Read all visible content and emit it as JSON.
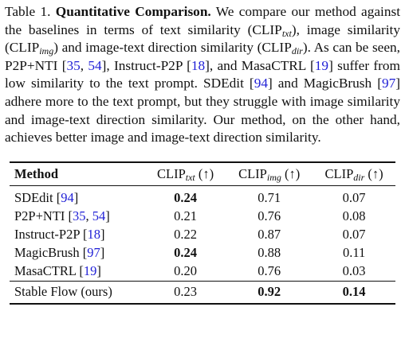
{
  "caption": [
    "Table 1. ",
    {
      "bold": "Quantitative Comparison."
    },
    " We compare our method against the baselines in terms of text similarity (CLIP",
    {
      "sub": "txt"
    },
    "), image similarity (CLIP",
    {
      "sub": "img"
    },
    ") and image-text direction similarity (CLIP",
    {
      "sub": "dir"
    },
    "). As can be seen, P2P+NTI [",
    {
      "cite": "35"
    },
    ", ",
    {
      "cite": "54"
    },
    "], Instruct-P2P [",
    {
      "cite": "18"
    },
    "], and MasaCTRL [",
    {
      "cite": "19"
    },
    "] suffer from low similarity to the text prompt. SDEdit [",
    {
      "cite": "94"
    },
    "] and MagicBrush [",
    {
      "cite": "97"
    },
    "] adhere more to the text prompt, but they struggle with image similarity and image-text direction similarity. Our method, on the other hand, achieves better image and image-text direction similarity."
  ],
  "table": {
    "header": [
      [
        {
          "bold": "Method"
        }
      ],
      [
        "CLIP",
        {
          "sub": "txt"
        },
        " (↑)"
      ],
      [
        "CLIP",
        {
          "sub": "img"
        },
        " (↑)"
      ],
      [
        "CLIP",
        {
          "sub": "dir"
        },
        " (↑)"
      ]
    ],
    "rows": [
      {
        "method": [
          "SDEdit [",
          {
            "cite": "94"
          },
          "]"
        ],
        "cells": [
          {
            "value": "0.24",
            "bold": true
          },
          {
            "value": "0.71"
          },
          {
            "value": "0.07"
          }
        ]
      },
      {
        "method": [
          "P2P+NTI [",
          {
            "cite": "35"
          },
          ", ",
          {
            "cite": "54"
          },
          "]"
        ],
        "cells": [
          {
            "value": "0.21"
          },
          {
            "value": "0.76"
          },
          {
            "value": "0.08"
          }
        ]
      },
      {
        "method": [
          "Instruct-P2P [",
          {
            "cite": "18"
          },
          "]"
        ],
        "cells": [
          {
            "value": "0.22"
          },
          {
            "value": "0.87"
          },
          {
            "value": "0.07"
          }
        ]
      },
      {
        "method": [
          "MagicBrush [",
          {
            "cite": "97"
          },
          "]"
        ],
        "cells": [
          {
            "value": "0.24",
            "bold": true
          },
          {
            "value": "0.88"
          },
          {
            "value": "0.11"
          }
        ]
      },
      {
        "method": [
          "MasaCTRL [",
          {
            "cite": "19"
          },
          "]"
        ],
        "cells": [
          {
            "value": "0.20"
          },
          {
            "value": "0.76"
          },
          {
            "value": "0.03"
          }
        ]
      },
      {
        "method": [
          "Stable Flow (ours)"
        ],
        "cells": [
          {
            "value": "0.23"
          },
          {
            "value": "0.92",
            "bold": true
          },
          {
            "value": "0.14",
            "bold": true
          }
        ]
      }
    ]
  }
}
